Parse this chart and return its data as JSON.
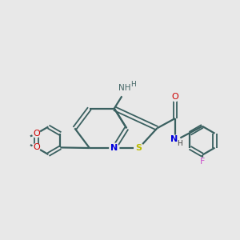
{
  "bg_color": "#e8e8e8",
  "bond_color": "#3a6060",
  "atom_colors": {
    "N": "#0000dd",
    "S": "#bbbb00",
    "O": "#cc0000",
    "F": "#cc55cc",
    "NH2": "#446666",
    "H": "#446666",
    "NH_H": "#3a3a3a"
  },
  "figsize": [
    3.0,
    3.0
  ],
  "dpi": 100
}
